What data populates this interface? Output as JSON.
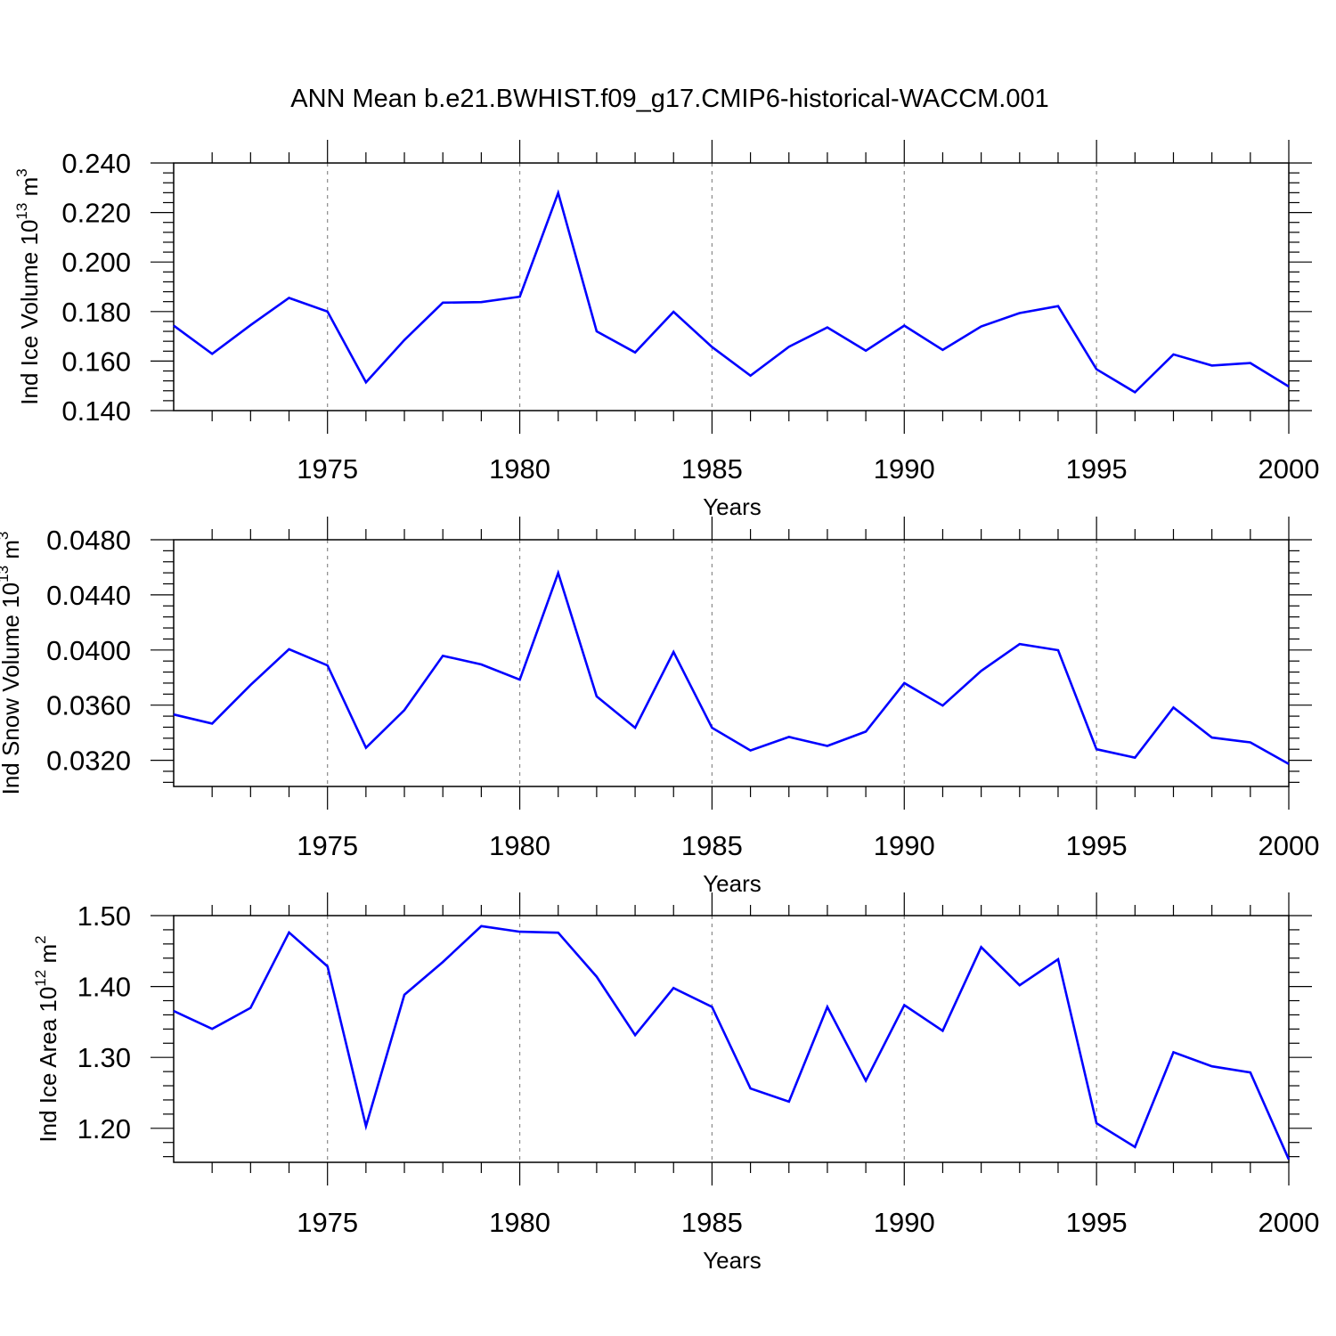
{
  "figure": {
    "title": "ANN Mean b.e21.BWHIST.f09_g17.CMIP6-historical-WACCM.001"
  },
  "chart_data": [
    {
      "type": "line",
      "title": "ANN Mean b.e21.BWHIST.f09_g17.CMIP6-historical-WACCM.001",
      "xlabel": "Years",
      "ylabel": "Ind Ice Volume 10",
      "ylabel_exp": "13",
      "ylabel_unit": " m",
      "ylabel_unit_exp": "3",
      "xlim": [
        1971,
        2000
      ],
      "ylim": [
        0.14,
        0.24
      ],
      "xticks": [
        1975,
        1980,
        1985,
        1990,
        1995,
        2000
      ],
      "xtick_labels": [
        "1975",
        "1980",
        "1985",
        "1990",
        "1995",
        "2000"
      ],
      "yticks": [
        0.14,
        0.16,
        0.18,
        0.2,
        0.22,
        0.24
      ],
      "ytick_labels": [
        "0.140",
        "0.160",
        "0.180",
        "0.200",
        "0.220",
        "0.240"
      ],
      "line_color": "#0000ff",
      "x": [
        1971,
        1972,
        1973,
        1974,
        1975,
        1976,
        1977,
        1978,
        1979,
        1980,
        1981,
        1982,
        1983,
        1984,
        1985,
        1986,
        1987,
        1988,
        1989,
        1990,
        1991,
        1992,
        1993,
        1994,
        1995,
        1996,
        1997,
        1998,
        1999,
        2000
      ],
      "values": [
        0.1743,
        0.1629,
        0.1745,
        0.1855,
        0.18,
        0.1514,
        0.1685,
        0.1836,
        0.1838,
        0.186,
        0.2279,
        0.172,
        0.1635,
        0.1799,
        0.1657,
        0.1541,
        0.1658,
        0.1736,
        0.1642,
        0.1743,
        0.1645,
        0.174,
        0.1794,
        0.1822,
        0.1567,
        0.1474,
        0.1627,
        0.1582,
        0.1592,
        0.1497
      ]
    },
    {
      "type": "line",
      "xlabel": "Years",
      "ylabel": "Ind Snow Volume 10",
      "ylabel_exp": "13",
      "ylabel_unit": " m",
      "ylabel_unit_exp": "3",
      "xlim": [
        1971,
        2000
      ],
      "ylim": [
        0.0301,
        0.048
      ],
      "xticks": [
        1975,
        1980,
        1985,
        1990,
        1995,
        2000
      ],
      "xtick_labels": [
        "1975",
        "1980",
        "1985",
        "1990",
        "1995",
        "2000"
      ],
      "yticks": [
        0.032,
        0.036,
        0.04,
        0.044,
        0.048
      ],
      "ytick_labels": [
        "0.0320",
        "0.0360",
        "0.0400",
        "0.0440",
        "0.0480"
      ],
      "line_color": "#0000ff",
      "x": [
        1971,
        1972,
        1973,
        1974,
        1975,
        1976,
        1977,
        1978,
        1979,
        1980,
        1981,
        1982,
        1983,
        1984,
        1985,
        1986,
        1987,
        1988,
        1989,
        1990,
        1991,
        1992,
        1993,
        1994,
        1995,
        1996,
        1997,
        1998,
        1999,
        2000
      ],
      "values": [
        0.03532,
        0.03466,
        0.03746,
        0.04006,
        0.03888,
        0.03291,
        0.03564,
        0.03958,
        0.03895,
        0.03785,
        0.04559,
        0.03663,
        0.03436,
        0.03986,
        0.03436,
        0.03271,
        0.03369,
        0.03304,
        0.03408,
        0.0376,
        0.03597,
        0.03848,
        0.04043,
        0.03999,
        0.0328,
        0.03219,
        0.03583,
        0.03365,
        0.0333,
        0.03173
      ]
    },
    {
      "type": "line",
      "xlabel": "Years",
      "ylabel": "Ind Ice Area 10",
      "ylabel_exp": "12",
      "ylabel_unit": " m",
      "ylabel_unit_exp": "2",
      "xlim": [
        1971,
        2000
      ],
      "ylim": [
        1.152,
        1.5
      ],
      "xticks": [
        1975,
        1980,
        1985,
        1990,
        1995,
        2000
      ],
      "xtick_labels": [
        "1975",
        "1980",
        "1985",
        "1990",
        "1995",
        "2000"
      ],
      "yticks": [
        1.2,
        1.3,
        1.4,
        1.5
      ],
      "ytick_labels": [
        "1.20",
        "1.30",
        "1.40",
        "1.50"
      ],
      "line_color": "#0000ff",
      "x": [
        1971,
        1972,
        1973,
        1974,
        1975,
        1976,
        1977,
        1978,
        1979,
        1980,
        1981,
        1982,
        1983,
        1984,
        1985,
        1986,
        1987,
        1988,
        1989,
        1990,
        1991,
        1992,
        1993,
        1994,
        1995,
        1996,
        1997,
        1998,
        1999,
        2000
      ],
      "values": [
        1.3655,
        1.3402,
        1.3699,
        1.4763,
        1.4284,
        1.203,
        1.3883,
        1.4346,
        1.4852,
        1.4772,
        1.4759,
        1.4138,
        1.3314,
        1.3978,
        1.3712,
        1.2562,
        1.2375,
        1.3712,
        1.2672,
        1.3738,
        1.3376,
        1.4555,
        1.4017,
        1.4385,
        1.2071,
        1.1736,
        1.3073,
        1.2874,
        1.2787,
        1.1561
      ]
    }
  ]
}
